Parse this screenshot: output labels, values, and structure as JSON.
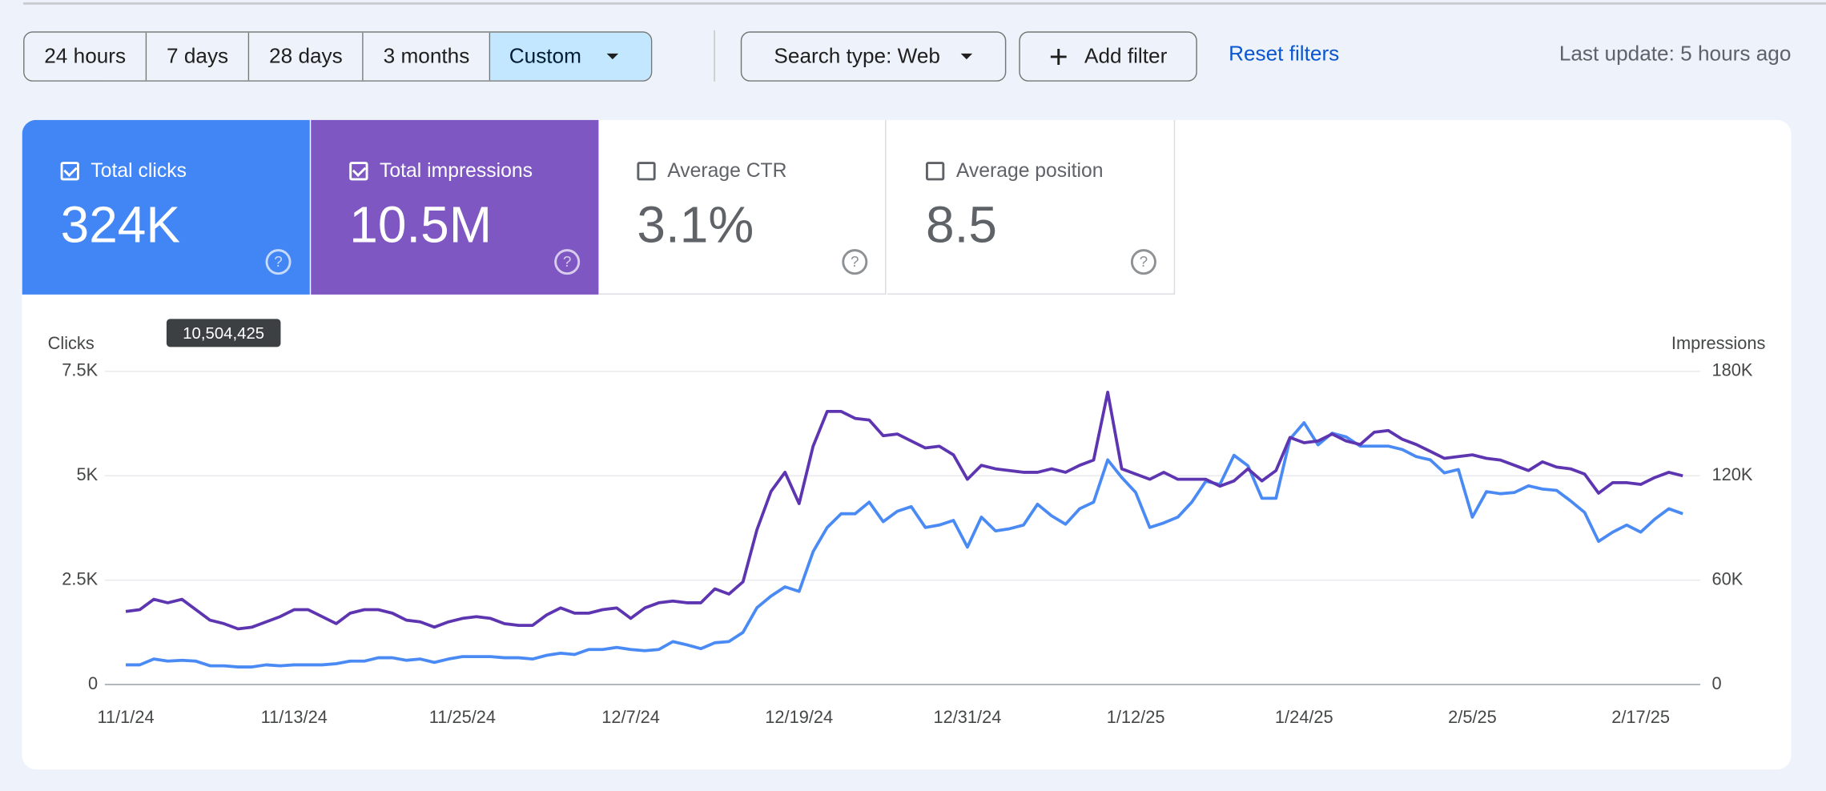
{
  "toolbar": {
    "ranges": [
      "24 hours",
      "7 days",
      "28 days",
      "3 months",
      "Custom"
    ],
    "search_type": "Search type: Web",
    "add_filter": "Add filter",
    "reset": "Reset filters",
    "last_update": "Last update: 5 hours ago"
  },
  "metrics": [
    {
      "label": "Total clicks",
      "value": "324K"
    },
    {
      "label": "Total impressions",
      "value": "10.5M"
    },
    {
      "label": "Average CTR",
      "value": "3.1%"
    },
    {
      "label": "Average position",
      "value": "8.5"
    }
  ],
  "tooltip": "10,504,425",
  "chart_data": {
    "type": "line",
    "categories": [
      "11/1/24",
      null,
      null,
      null,
      null,
      null,
      null,
      null,
      null,
      null,
      null,
      null,
      "11/13/24",
      null,
      null,
      null,
      null,
      null,
      null,
      null,
      null,
      null,
      null,
      null,
      "11/25/24",
      null,
      null,
      null,
      null,
      null,
      null,
      null,
      null,
      null,
      null,
      null,
      "12/7/24",
      null,
      null,
      null,
      null,
      null,
      null,
      null,
      null,
      null,
      null,
      null,
      "12/19/24",
      null,
      null,
      null,
      null,
      null,
      null,
      null,
      null,
      null,
      null,
      null,
      "12/31/24",
      null,
      null,
      null,
      null,
      null,
      null,
      null,
      null,
      null,
      null,
      null,
      "1/12/25",
      null,
      null,
      null,
      null,
      null,
      null,
      null,
      null,
      null,
      null,
      null,
      "1/24/25",
      null,
      null,
      null,
      null,
      null,
      null,
      null,
      null,
      null,
      null,
      null,
      "2/5/25",
      null,
      null,
      null,
      null,
      null,
      null,
      null,
      null,
      null,
      null,
      null,
      "2/17/25",
      null,
      null,
      null
    ],
    "series": [
      {
        "name": "Clicks",
        "color": "#4a8af4",
        "values": [
          470,
          470,
          610,
          560,
          580,
          560,
          450,
          450,
          420,
          420,
          470,
          450,
          470,
          470,
          470,
          500,
          560,
          560,
          640,
          640,
          580,
          610,
          530,
          610,
          670,
          670,
          670,
          640,
          640,
          610,
          700,
          750,
          720,
          840,
          840,
          890,
          840,
          810,
          840,
          1030,
          950,
          860,
          1000,
          1030,
          1250,
          1840,
          2120,
          2340,
          2230,
          3180,
          3760,
          4090,
          4090,
          4370,
          3900,
          4150,
          4260,
          3760,
          3820,
          3930,
          3290,
          4010,
          3680,
          3730,
          3820,
          4320,
          4040,
          3840,
          4210,
          4370,
          5380,
          4960,
          4600,
          3760,
          3870,
          4010,
          4370,
          4870,
          4790,
          5490,
          5240,
          4460,
          4460,
          5880,
          6270,
          5740,
          6020,
          5930,
          5710,
          5710,
          5710,
          5630,
          5460,
          5380,
          5070,
          5150,
          4010,
          4620,
          4570,
          4600,
          4760,
          4680,
          4650,
          4400,
          4120,
          3430,
          3650,
          3820,
          3650,
          3960,
          4210,
          4090
        ]
      },
      {
        "name": "Impressions",
        "color": "#5e35b1",
        "axis": "y2",
        "values": [
          42000,
          43000,
          49000,
          47000,
          49000,
          43000,
          37000,
          35000,
          32000,
          33000,
          36000,
          39000,
          43000,
          43000,
          39000,
          35000,
          41000,
          43000,
          43000,
          41000,
          37000,
          36000,
          33000,
          36000,
          38000,
          39000,
          38000,
          35000,
          34000,
          34000,
          40000,
          44000,
          41000,
          41000,
          43000,
          44000,
          38000,
          44000,
          47000,
          48000,
          47000,
          47000,
          55000,
          52000,
          59000,
          89000,
          111000,
          122000,
          104000,
          137000,
          157000,
          157000,
          153000,
          152000,
          143000,
          144000,
          140000,
          136000,
          137000,
          132000,
          118000,
          126000,
          124000,
          123000,
          122000,
          122000,
          124000,
          122000,
          126000,
          129000,
          168000,
          124000,
          121000,
          118000,
          122000,
          118000,
          118000,
          118000,
          114000,
          117000,
          124000,
          117000,
          123000,
          142000,
          139000,
          140000,
          144000,
          140000,
          138000,
          145000,
          146000,
          141000,
          138000,
          134000,
          130000,
          131000,
          132000,
          130000,
          129000,
          126000,
          123000,
          128000,
          125000,
          124000,
          121000,
          110000,
          116000,
          116000,
          115000,
          119000,
          122000,
          120000
        ]
      }
    ],
    "ylim": [
      0,
      7500
    ],
    "yticks": [
      0,
      {
        "value": 2500,
        "label": "2.5K"
      },
      {
        "value": 5000,
        "label": "5K"
      },
      {
        "value": 7500,
        "label": "7.5K"
      }
    ],
    "y2lim": [
      0,
      180000
    ],
    "y2ticks": [
      0,
      {
        "value": 60000,
        "label": "60K"
      },
      {
        "value": 120000,
        "label": "120K"
      },
      {
        "value": 180000,
        "label": "180K"
      }
    ],
    "grid": true
  }
}
